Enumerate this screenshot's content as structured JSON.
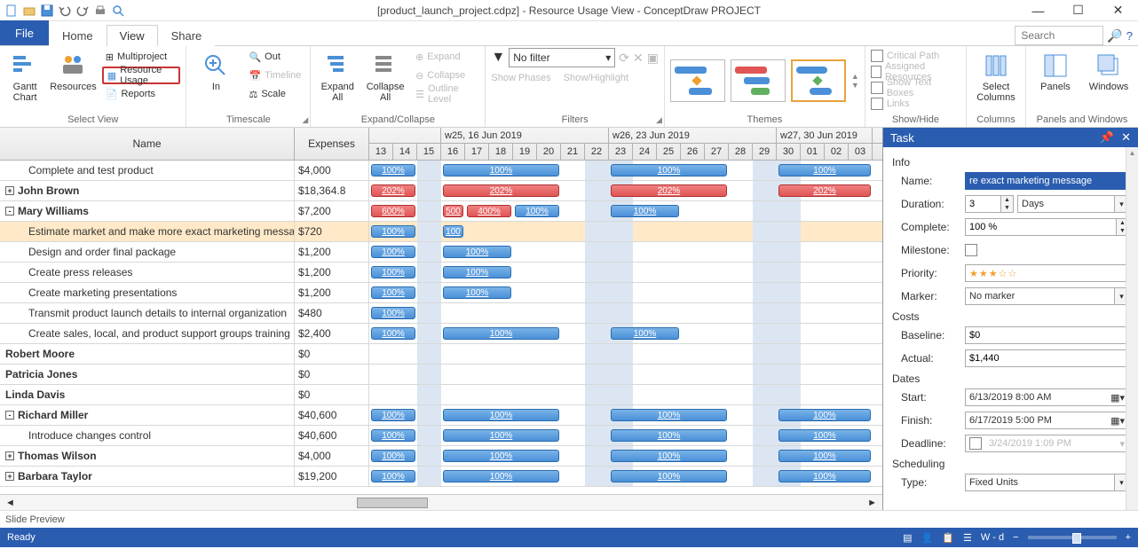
{
  "window": {
    "title": "[product_launch_project.cdpz] - Resource Usage View - ConceptDraw PROJECT"
  },
  "quick_access": [
    "new",
    "open",
    "save",
    "undo",
    "redo",
    "print",
    "preview"
  ],
  "ribbon": {
    "tabs": [
      "File",
      "Home",
      "View",
      "Share"
    ],
    "active_tab": "View",
    "search_placeholder": "Search",
    "groups": {
      "select_view": {
        "label": "Select View",
        "gantt": "Gantt\nChart",
        "resources": "Resources",
        "multiproject": "Multiproject",
        "resource_usage": "Resource Usage",
        "reports": "Reports"
      },
      "timescale": {
        "label": "Timescale",
        "in": "In",
        "out": "Out",
        "timeline": "Timeline",
        "scale": "Scale"
      },
      "expand": {
        "label": "Expand/Collapse",
        "expand_all": "Expand\nAll",
        "collapse_all": "Collapse\nAll",
        "expand": "Expand",
        "collapse": "Collapse",
        "outline": "Outline Level"
      },
      "filters": {
        "label": "Filters",
        "no_filter": "No filter",
        "show_phases": "Show Phases",
        "show_highlight": "Show/Highlight"
      },
      "themes": {
        "label": "Themes"
      },
      "showhide": {
        "label": "Show/Hide",
        "items": [
          "Critical Path",
          "Assigned Resources",
          "Show Text Boxes",
          "Links"
        ]
      },
      "columns": {
        "label": "Columns",
        "select": "Select\nColumns"
      },
      "panels_windows": {
        "label": "Panels and Windows",
        "panels": "Panels",
        "windows": "Windows"
      }
    }
  },
  "grid": {
    "columns": {
      "name": "Name",
      "expenses": "Expenses"
    },
    "weeks": [
      {
        "label": "",
        "span": 3
      },
      {
        "label": "w25, 16 Jun 2019",
        "span": 7
      },
      {
        "label": "w26, 23 Jun 2019",
        "span": 7
      },
      {
        "label": "w27, 30 Jun 2019",
        "span": 4
      }
    ],
    "days": [
      "13",
      "14",
      "15",
      "16",
      "17",
      "18",
      "19",
      "20",
      "21",
      "22",
      "23",
      "24",
      "25",
      "26",
      "27",
      "28",
      "29",
      "30",
      "01",
      "02",
      "03"
    ],
    "day_width": 27,
    "weekend_cols": [
      2,
      9,
      10,
      16,
      17
    ],
    "rows": [
      {
        "name": "Complete and test product",
        "exp": "$4,000",
        "indent": 2,
        "bars": [
          {
            "c": "blue",
            "s": 0,
            "w": 2,
            "t": "100%"
          },
          {
            "c": "blue",
            "s": 3,
            "w": 5,
            "t": "100%"
          },
          {
            "c": "blue",
            "s": 10,
            "w": 5,
            "t": "100%"
          },
          {
            "c": "blue",
            "s": 17,
            "w": 4,
            "t": "100%"
          }
        ]
      },
      {
        "name": "John Brown",
        "exp": "$18,364.8",
        "indent": 0,
        "bold": true,
        "toggle": "+",
        "bars": [
          {
            "c": "red",
            "s": 0,
            "w": 2,
            "t": "202%"
          },
          {
            "c": "red",
            "s": 3,
            "w": 5,
            "t": "202%"
          },
          {
            "c": "red",
            "s": 10,
            "w": 5,
            "t": "202%"
          },
          {
            "c": "red",
            "s": 17,
            "w": 4,
            "t": "202%"
          }
        ]
      },
      {
        "name": "Mary Williams",
        "exp": "$7,200",
        "indent": 0,
        "bold": true,
        "toggle": "-",
        "bars": [
          {
            "c": "red",
            "s": 0,
            "w": 2,
            "t": "600%"
          },
          {
            "c": "red",
            "s": 3,
            "w": 1,
            "t": "500"
          },
          {
            "c": "red",
            "s": 4,
            "w": 2,
            "t": "400%"
          },
          {
            "c": "blue",
            "s": 6,
            "w": 2,
            "t": "100%"
          },
          {
            "c": "blue",
            "s": 10,
            "w": 3,
            "t": "100%"
          }
        ]
      },
      {
        "name": "Estimate market and make more exact marketing message",
        "exp": "$720",
        "indent": 2,
        "sel": true,
        "bars": [
          {
            "c": "blue",
            "s": 0,
            "w": 2,
            "t": "100%"
          },
          {
            "c": "blue",
            "s": 3,
            "w": 1,
            "t": "100"
          }
        ]
      },
      {
        "name": "Design and order final package",
        "exp": "$1,200",
        "indent": 2,
        "bars": [
          {
            "c": "blue",
            "s": 0,
            "w": 2,
            "t": "100%"
          },
          {
            "c": "blue",
            "s": 3,
            "w": 3,
            "t": "100%"
          }
        ]
      },
      {
        "name": "Create press releases",
        "exp": "$1,200",
        "indent": 2,
        "bars": [
          {
            "c": "blue",
            "s": 0,
            "w": 2,
            "t": "100%"
          },
          {
            "c": "blue",
            "s": 3,
            "w": 3,
            "t": "100%"
          }
        ]
      },
      {
        "name": "Create marketing presentations",
        "exp": "$1,200",
        "indent": 2,
        "bars": [
          {
            "c": "blue",
            "s": 0,
            "w": 2,
            "t": "100%"
          },
          {
            "c": "blue",
            "s": 3,
            "w": 3,
            "t": "100%"
          }
        ]
      },
      {
        "name": "Transmit product launch details to internal organization",
        "exp": "$480",
        "indent": 2,
        "bars": [
          {
            "c": "blue",
            "s": 0,
            "w": 2,
            "t": "100%"
          }
        ]
      },
      {
        "name": "Create sales, local, and product support groups training",
        "exp": "$2,400",
        "indent": 2,
        "bars": [
          {
            "c": "blue",
            "s": 0,
            "w": 2,
            "t": "100%"
          },
          {
            "c": "blue",
            "s": 3,
            "w": 5,
            "t": "100%"
          },
          {
            "c": "blue",
            "s": 10,
            "w": 3,
            "t": "100%"
          }
        ]
      },
      {
        "name": "Robert Moore",
        "exp": "$0",
        "indent": 0,
        "bold": true
      },
      {
        "name": "Patricia Jones",
        "exp": "$0",
        "indent": 0,
        "bold": true
      },
      {
        "name": "Linda Davis",
        "exp": "$0",
        "indent": 0,
        "bold": true
      },
      {
        "name": "Richard Miller",
        "exp": "$40,600",
        "indent": 0,
        "bold": true,
        "toggle": "-",
        "bars": [
          {
            "c": "blue",
            "s": 0,
            "w": 2,
            "t": "100%"
          },
          {
            "c": "blue",
            "s": 3,
            "w": 5,
            "t": "100%"
          },
          {
            "c": "blue",
            "s": 10,
            "w": 5,
            "t": "100%"
          },
          {
            "c": "blue",
            "s": 17,
            "w": 4,
            "t": "100%"
          }
        ]
      },
      {
        "name": "Introduce changes control",
        "exp": "$40,600",
        "indent": 2,
        "bars": [
          {
            "c": "blue",
            "s": 0,
            "w": 2,
            "t": "100%"
          },
          {
            "c": "blue",
            "s": 3,
            "w": 5,
            "t": "100%"
          },
          {
            "c": "blue",
            "s": 10,
            "w": 5,
            "t": "100%"
          },
          {
            "c": "blue",
            "s": 17,
            "w": 4,
            "t": "100%"
          }
        ]
      },
      {
        "name": "Thomas Wilson",
        "exp": "$4,000",
        "indent": 0,
        "bold": true,
        "toggle": "+",
        "bars": [
          {
            "c": "blue",
            "s": 0,
            "w": 2,
            "t": "100%"
          },
          {
            "c": "blue",
            "s": 3,
            "w": 5,
            "t": "100%"
          },
          {
            "c": "blue",
            "s": 10,
            "w": 5,
            "t": "100%"
          },
          {
            "c": "blue",
            "s": 17,
            "w": 4,
            "t": "100%"
          }
        ]
      },
      {
        "name": "Barbara Taylor",
        "exp": "$19,200",
        "indent": 0,
        "bold": true,
        "toggle": "+",
        "bars": [
          {
            "c": "blue",
            "s": 0,
            "w": 2,
            "t": "100%"
          },
          {
            "c": "blue",
            "s": 3,
            "w": 5,
            "t": "100%"
          },
          {
            "c": "blue",
            "s": 10,
            "w": 5,
            "t": "100%"
          },
          {
            "c": "blue",
            "s": 17,
            "w": 4,
            "t": "100%"
          }
        ]
      }
    ]
  },
  "panel": {
    "title": "Task",
    "info": "Info",
    "name_lbl": "Name:",
    "name_val": "re exact marketing message",
    "duration_lbl": "Duration:",
    "duration_val": "3",
    "duration_unit": "Days",
    "complete_lbl": "Complete:",
    "complete_val": "100 %",
    "milestone_lbl": "Milestone:",
    "priority_lbl": "Priority:",
    "priority_stars": "★★★☆☆",
    "marker_lbl": "Marker:",
    "marker_val": "No marker",
    "costs": "Costs",
    "baseline_lbl": "Baseline:",
    "baseline_val": "$0",
    "actual_lbl": "Actual:",
    "actual_val": "$1,440",
    "dates": "Dates",
    "start_lbl": "Start:",
    "start_val": "6/13/2019   8:00 AM",
    "finish_lbl": "Finish:",
    "finish_val": "6/17/2019   5:00 PM",
    "deadline_lbl": "Deadline:",
    "deadline_val": "3/24/2019   1:09 PM",
    "deadline_greyed": true,
    "scheduling": "Scheduling",
    "type_lbl": "Type:",
    "type_val": "Fixed Units"
  },
  "footer": {
    "slide_preview": "Slide Preview",
    "ready": "Ready",
    "wd": "W - d"
  }
}
